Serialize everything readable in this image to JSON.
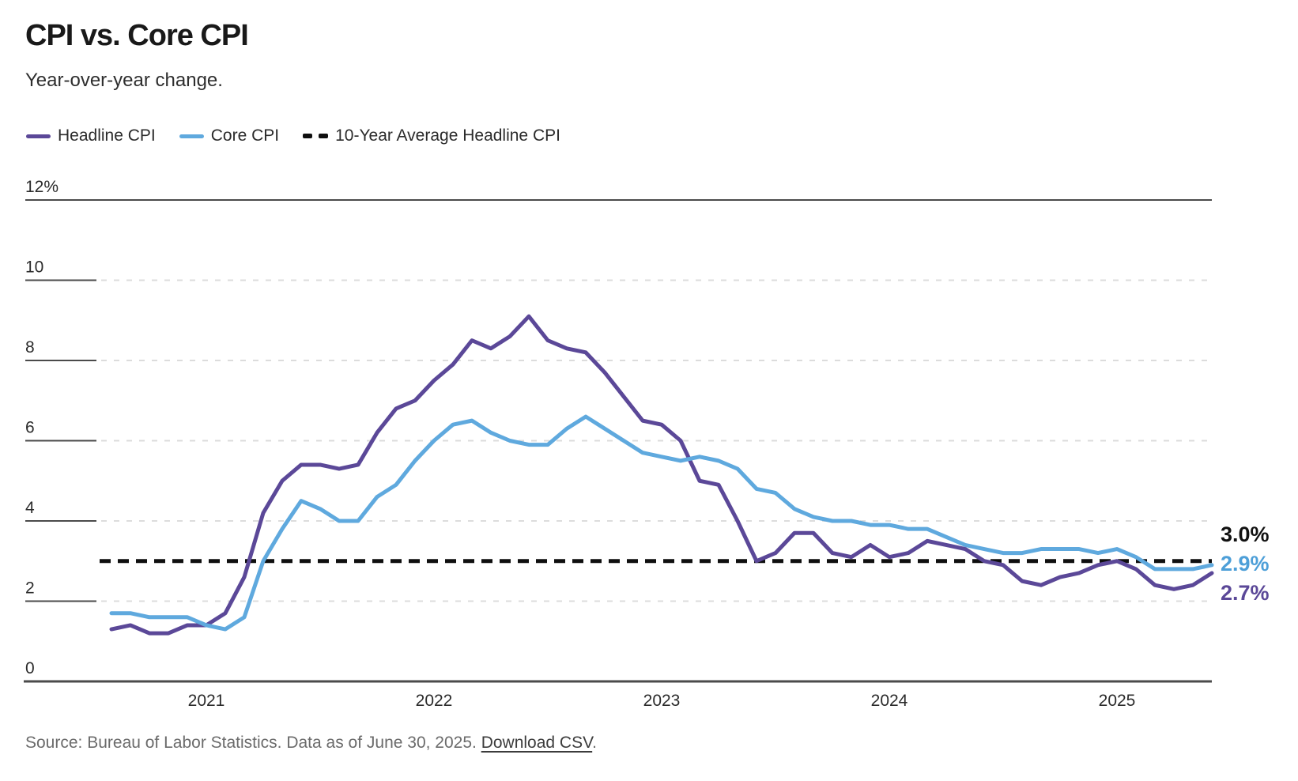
{
  "header": {
    "title": "CPI vs. Core CPI",
    "subtitle": "Year-over-year change."
  },
  "legend": {
    "items": [
      {
        "label": "Headline CPI",
        "color": "#5b4898",
        "style": "solid"
      },
      {
        "label": "Core CPI",
        "color": "#5fa9de",
        "style": "solid"
      },
      {
        "label": "10-Year Average Headline CPI",
        "color": "#0f0f0f",
        "style": "dashed"
      }
    ]
  },
  "chart_data": {
    "type": "line",
    "title": "CPI vs. Core CPI",
    "subtitle": "Year-over-year change.",
    "x_unit": "month",
    "x": [
      "2020-08",
      "2020-09",
      "2020-10",
      "2020-11",
      "2020-12",
      "2021-01",
      "2021-02",
      "2021-03",
      "2021-04",
      "2021-05",
      "2021-06",
      "2021-07",
      "2021-08",
      "2021-09",
      "2021-10",
      "2021-11",
      "2021-12",
      "2022-01",
      "2022-02",
      "2022-03",
      "2022-04",
      "2022-05",
      "2022-06",
      "2022-07",
      "2022-08",
      "2022-09",
      "2022-10",
      "2022-11",
      "2022-12",
      "2023-01",
      "2023-02",
      "2023-03",
      "2023-04",
      "2023-05",
      "2023-06",
      "2023-07",
      "2023-08",
      "2023-09",
      "2023-10",
      "2023-11",
      "2023-12",
      "2024-01",
      "2024-02",
      "2024-03",
      "2024-04",
      "2024-05",
      "2024-06",
      "2024-07",
      "2024-08",
      "2024-09",
      "2024-10",
      "2024-11",
      "2024-12",
      "2025-01",
      "2025-02",
      "2025-03",
      "2025-04",
      "2025-05",
      "2025-06"
    ],
    "series": [
      {
        "name": "Headline CPI",
        "color": "#5b4898",
        "values": [
          1.3,
          1.4,
          1.2,
          1.2,
          1.4,
          1.4,
          1.7,
          2.6,
          4.2,
          5.0,
          5.4,
          5.4,
          5.3,
          5.4,
          6.2,
          6.8,
          7.0,
          7.5,
          7.9,
          8.5,
          8.3,
          8.6,
          9.1,
          8.5,
          8.3,
          8.2,
          7.7,
          7.1,
          6.5,
          6.4,
          6.0,
          5.0,
          4.9,
          4.0,
          3.0,
          3.2,
          3.7,
          3.7,
          3.2,
          3.1,
          3.4,
          3.1,
          3.2,
          3.5,
          3.4,
          3.3,
          3.0,
          2.9,
          2.5,
          2.4,
          2.6,
          2.7,
          2.9,
          3.0,
          2.8,
          2.4,
          2.3,
          2.4,
          2.7
        ]
      },
      {
        "name": "Core CPI",
        "color": "#5fa9de",
        "values": [
          1.7,
          1.7,
          1.6,
          1.6,
          1.6,
          1.4,
          1.3,
          1.6,
          3.0,
          3.8,
          4.5,
          4.3,
          4.0,
          4.0,
          4.6,
          4.9,
          5.5,
          6.0,
          6.4,
          6.5,
          6.2,
          6.0,
          5.9,
          5.9,
          6.3,
          6.6,
          6.3,
          6.0,
          5.7,
          5.6,
          5.5,
          5.6,
          5.5,
          5.3,
          4.8,
          4.7,
          4.3,
          4.1,
          4.0,
          4.0,
          3.9,
          3.9,
          3.8,
          3.8,
          3.6,
          3.4,
          3.3,
          3.2,
          3.2,
          3.3,
          3.3,
          3.3,
          3.2,
          3.3,
          3.1,
          2.8,
          2.8,
          2.8,
          2.9
        ]
      }
    ],
    "reference_line": {
      "name": "10-Year Average Headline CPI",
      "value": 3.0,
      "color": "#0f0f0f",
      "style": "dashed"
    },
    "y_axis": {
      "tick_labels": [
        "12%",
        "10",
        "8",
        "6",
        "4",
        "2",
        "0"
      ],
      "tick_values": [
        12,
        10,
        8,
        6,
        4,
        2,
        0
      ],
      "min": 0,
      "max": 12,
      "grid": true
    },
    "x_axis": {
      "tick_labels": [
        "2021",
        "2022",
        "2023",
        "2024",
        "2025"
      ]
    },
    "end_labels": [
      {
        "text": "3.0%",
        "color": "#111111"
      },
      {
        "text": "2.9%",
        "color": "#4d9fd8"
      },
      {
        "text": "2.7%",
        "color": "#5b4898"
      }
    ],
    "legend_position": "top"
  },
  "footer": {
    "source_text": "Source: Bureau of Labor Statistics. Data as of June 30, 2025. ",
    "link_label": "Download CSV",
    "after_link": "."
  }
}
